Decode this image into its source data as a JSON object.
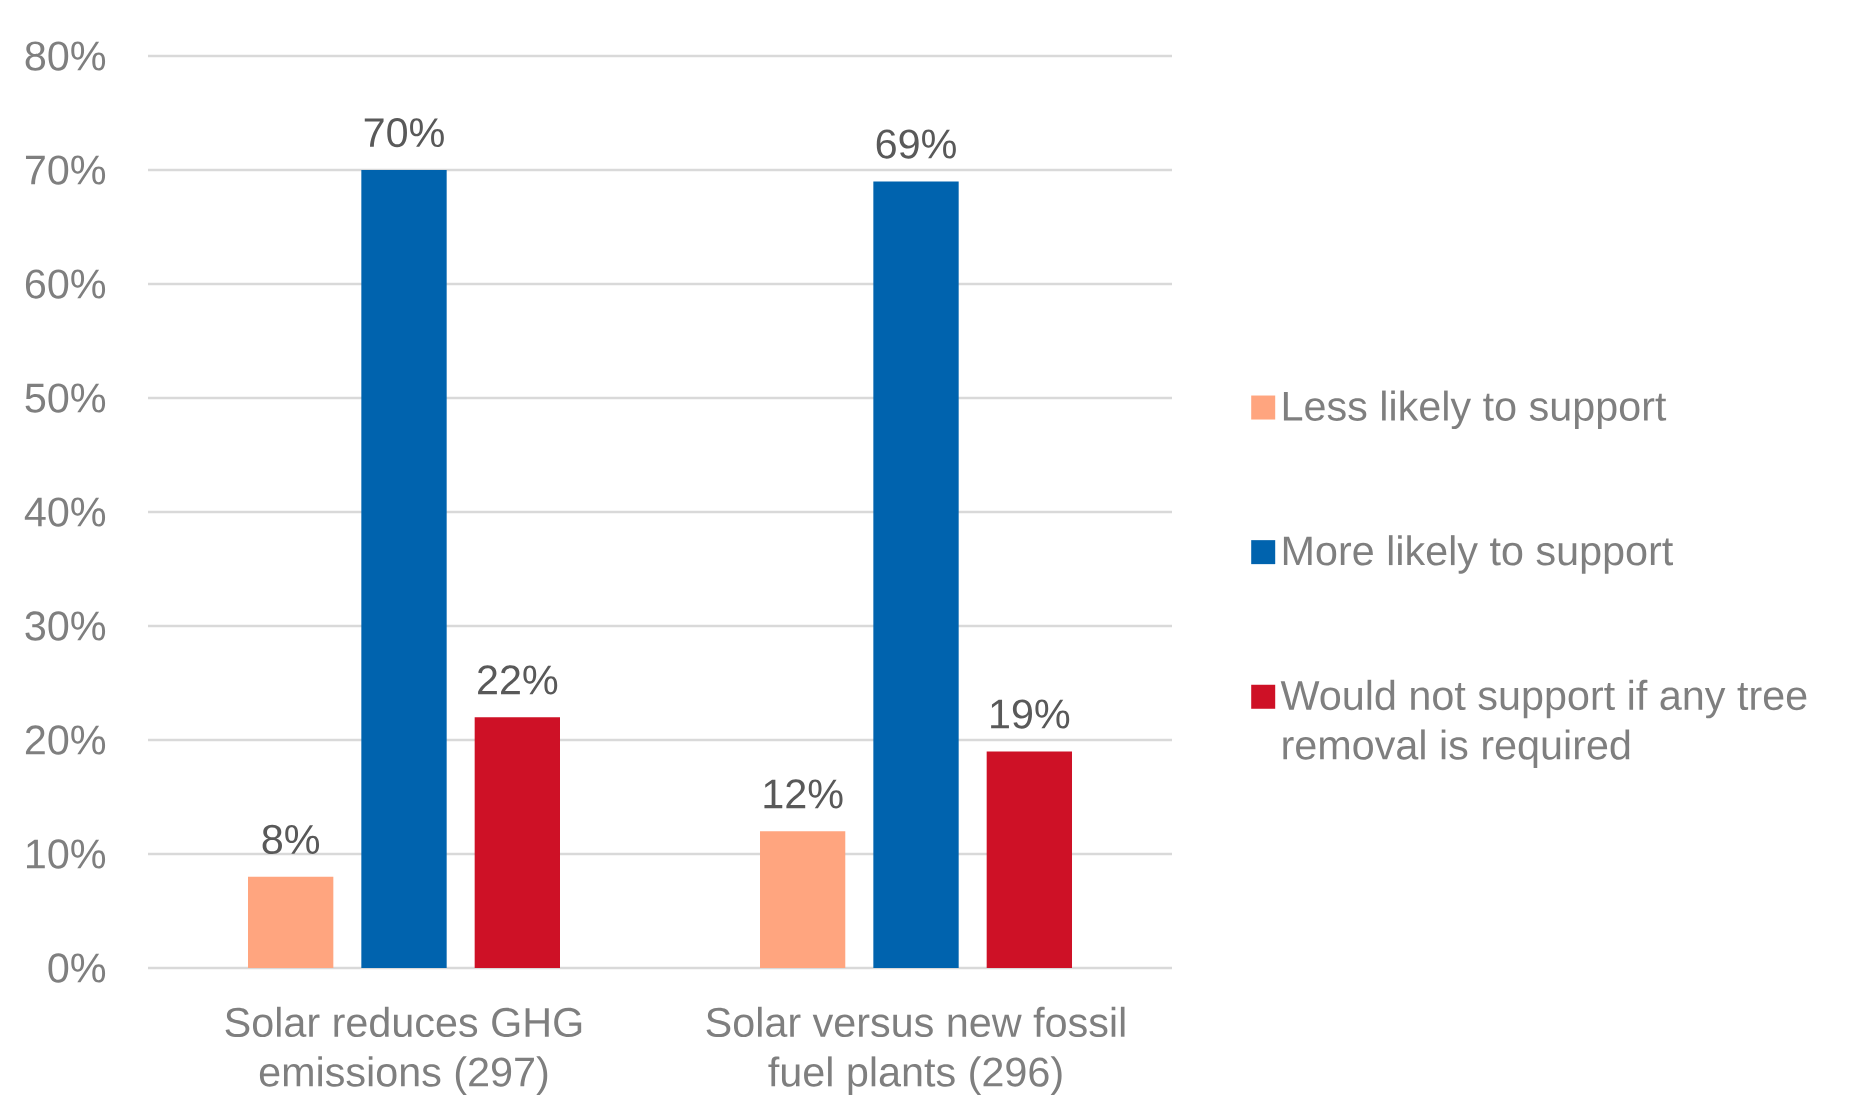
{
  "chart_data": {
    "type": "bar",
    "categories": [
      "Solar reduces GHG emissions (297)",
      "Solar versus new fossil fuel plants (296)"
    ],
    "series": [
      {
        "name": "Less likely to support",
        "color": "#ffa57f",
        "values": [
          8,
          12
        ],
        "value_labels": [
          "8%",
          "12%"
        ]
      },
      {
        "name": "More likely to support",
        "color": "#0063ae",
        "values": [
          70,
          69
        ],
        "value_labels": [
          "70%",
          "69%"
        ]
      },
      {
        "name": "Would not support if any tree removal is required",
        "color": "#ce1126",
        "values": [
          22,
          19
        ],
        "value_labels": [
          "22%",
          "19%"
        ]
      }
    ],
    "ylim": [
      0,
      80
    ],
    "yticks": [
      {
        "value": 0,
        "label": "0%"
      },
      {
        "value": 10,
        "label": "10%"
      },
      {
        "value": 20,
        "label": "20%"
      },
      {
        "value": 30,
        "label": "30%"
      },
      {
        "value": 40,
        "label": "40%"
      },
      {
        "value": 50,
        "label": "50%"
      },
      {
        "value": 60,
        "label": "60%"
      },
      {
        "value": 70,
        "label": "70%"
      },
      {
        "value": 80,
        "label": "80%"
      }
    ],
    "grid": "y",
    "legend": "right"
  }
}
